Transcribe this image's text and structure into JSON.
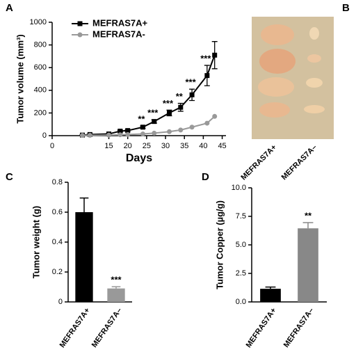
{
  "chart_data": [
    {
      "type": "line",
      "panel": "A",
      "ylabel": "Tumor volume (mm³)",
      "xlabel": "Days",
      "x": [
        8,
        10,
        15,
        18,
        20,
        24,
        27,
        31,
        34,
        37,
        41,
        43
      ],
      "series": [
        {
          "name": "MEFRAS7A+",
          "color": "#000000",
          "marker": "square",
          "values": [
            5,
            10,
            15,
            40,
            45,
            75,
            125,
            200,
            250,
            360,
            530,
            710
          ],
          "errors": [
            3,
            5,
            5,
            8,
            8,
            10,
            15,
            25,
            35,
            50,
            90,
            120
          ]
        },
        {
          "name": "MEFRAS7A-",
          "color": "#999999",
          "marker": "circle",
          "values": [
            2,
            3,
            5,
            8,
            10,
            15,
            22,
            35,
            50,
            75,
            110,
            170
          ]
        }
      ],
      "annotations": [
        {
          "x": 24,
          "text": "**"
        },
        {
          "x": 27,
          "text": "***"
        },
        {
          "x": 31,
          "text": "***"
        },
        {
          "x": 34,
          "text": "**"
        },
        {
          "x": 37,
          "text": "***"
        },
        {
          "x": 41,
          "text": "***"
        }
      ],
      "annotation_anchor_series": 0,
      "xlim": [
        0,
        46
      ],
      "xticks": [
        0,
        15,
        20,
        25,
        30,
        35,
        40,
        45
      ],
      "ylim": [
        0,
        1000
      ],
      "yticks": [
        0,
        200,
        400,
        600,
        800,
        1000
      ],
      "legend": "upper left"
    },
    {
      "type": "bar",
      "panel": "C",
      "ylabel": "Tumor weight (g)",
      "categories": [
        "MEFRAS7A+",
        "MEFRAS7A–"
      ],
      "colors": [
        "#000000",
        "#999999"
      ],
      "values": [
        0.6,
        0.09
      ],
      "errors": [
        0.095,
        0.012
      ],
      "value_labels": [
        null,
        "***"
      ],
      "ylim": [
        0,
        0.8
      ],
      "yticks": [
        0,
        0.2,
        0.4,
        0.6,
        0.8
      ]
    },
    {
      "type": "bar",
      "panel": "D",
      "ylabel": "Tumor Copper (µg/g)",
      "categories": [
        "MEFRAS7A+",
        "MEFRAS7A–"
      ],
      "colors": [
        "#000000",
        "#888888"
      ],
      "values": [
        1.15,
        6.45
      ],
      "errors": [
        0.15,
        0.5
      ],
      "value_labels": [
        null,
        "**"
      ],
      "ylim": [
        0,
        10
      ],
      "yticks": [
        {
          "value": 0,
          "label": "0.0"
        },
        {
          "value": 2.5,
          "label": "2.5"
        },
        {
          "value": 5,
          "label": "5.0"
        },
        {
          "value": 7.5,
          "label": "7.5"
        },
        {
          "value": 10,
          "label": "10.0"
        }
      ]
    }
  ],
  "photo": {
    "panel": "B",
    "categories": [
      "MEFRAS7A+",
      "MEFRAS7A–"
    ]
  }
}
